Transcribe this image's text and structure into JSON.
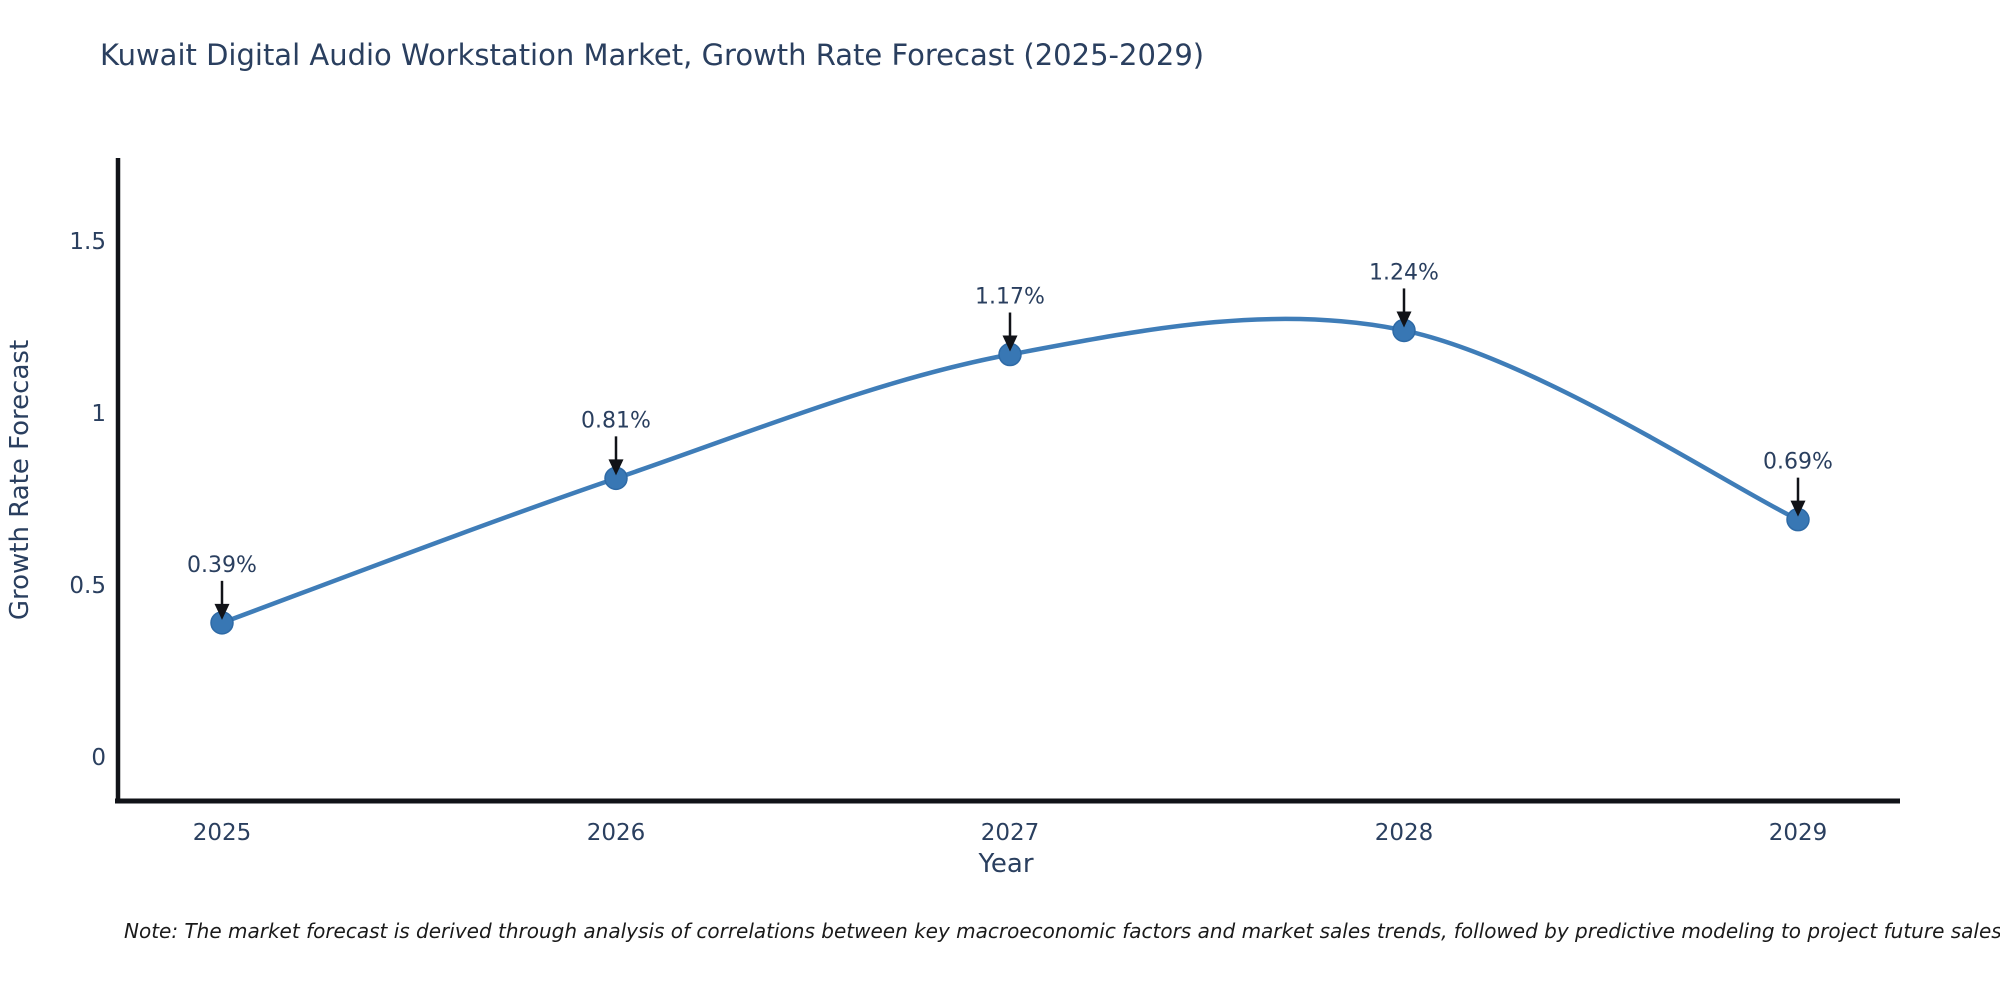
{
  "title": "Kuwait Digital Audio Workstation Market, Growth Rate Forecast (2025-2029)",
  "note": "Note: The market forecast is derived through analysis of correlations between key macroeconomic factors and market sales trends, followed by predictive modeling to project future sales",
  "colors": {
    "ink": "#2a3f5f",
    "line": "#3f7db8",
    "marker_fill": "#3877b4",
    "marker_edge": "#2e6aa6",
    "axis": "#111318",
    "arrow": "#111318",
    "background": "#ffffff"
  },
  "chart_data": {
    "type": "line",
    "title": "Kuwait Digital Audio Workstation Market, Growth Rate Forecast (2025-2029)",
    "x": [
      2025,
      2026,
      2027,
      2028,
      2029
    ],
    "values": [
      0.39,
      0.81,
      1.17,
      1.24,
      0.69
    ],
    "point_labels": [
      "0.39%",
      "0.81%",
      "1.17%",
      "1.24%",
      "0.69%"
    ],
    "series_name": "Growth Rate Forecast",
    "xlabel": "Year",
    "ylabel": "Growth Rate Forecast",
    "x_tick_labels": [
      "2025",
      "2026",
      "2027",
      "2028",
      "2029"
    ],
    "y_ticks": [
      0,
      0.5,
      1,
      1.5
    ],
    "y_tick_labels": [
      "0",
      "0.5",
      "1",
      "1.5"
    ],
    "ylim": [
      -0.13,
      1.74
    ],
    "line_shape": "spline",
    "grid": false,
    "legend_visible": false,
    "annotations_have_arrows": true
  }
}
